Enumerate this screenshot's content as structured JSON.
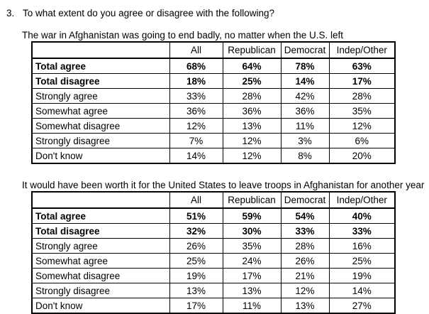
{
  "question": {
    "number": "3.",
    "text": "To what extent do you agree or disagree with the following?"
  },
  "tables": [
    {
      "title": "The war in Afghanistan was going to end badly, no matter when the U.S. left",
      "columns": [
        "",
        "All",
        "Republican",
        "Democrat",
        "Indep/Other"
      ],
      "rows": [
        {
          "label": "Total agree",
          "bold": true,
          "values": [
            "68%",
            "64%",
            "78%",
            "63%"
          ]
        },
        {
          "label": "Total disagree",
          "bold": true,
          "values": [
            "18%",
            "25%",
            "14%",
            "17%"
          ]
        },
        {
          "label": "Strongly agree",
          "bold": false,
          "values": [
            "33%",
            "28%",
            "42%",
            "28%"
          ]
        },
        {
          "label": "Somewhat agree",
          "bold": false,
          "values": [
            "36%",
            "36%",
            "36%",
            "35%"
          ]
        },
        {
          "label": "Somewhat disagree",
          "bold": false,
          "values": [
            "12%",
            "13%",
            "11%",
            "12%"
          ]
        },
        {
          "label": "Strongly disagree",
          "bold": false,
          "values": [
            "7%",
            "12%",
            "3%",
            "6%"
          ]
        },
        {
          "label": "Don't know",
          "bold": false,
          "values": [
            "14%",
            "12%",
            "8%",
            "20%"
          ]
        }
      ]
    },
    {
      "title": "It would have been worth it for the United States to leave troops in Afghanistan for another year",
      "columns": [
        "",
        "All",
        "Republican",
        "Democrat",
        "Indep/Other"
      ],
      "rows": [
        {
          "label": "Total agree",
          "bold": true,
          "values": [
            "51%",
            "59%",
            "54%",
            "40%"
          ]
        },
        {
          "label": "Total disagree",
          "bold": true,
          "values": [
            "32%",
            "30%",
            "33%",
            "33%"
          ]
        },
        {
          "label": "Strongly agree",
          "bold": false,
          "values": [
            "26%",
            "35%",
            "28%",
            "16%"
          ]
        },
        {
          "label": "Somewhat agree",
          "bold": false,
          "values": [
            "25%",
            "24%",
            "26%",
            "25%"
          ]
        },
        {
          "label": "Somewhat disagree",
          "bold": false,
          "values": [
            "19%",
            "17%",
            "21%",
            "19%"
          ]
        },
        {
          "label": "Strongly disagree",
          "bold": false,
          "values": [
            "13%",
            "13%",
            "12%",
            "14%"
          ]
        },
        {
          "label": "Don't know",
          "bold": false,
          "values": [
            "17%",
            "11%",
            "13%",
            "27%"
          ]
        }
      ]
    }
  ],
  "colors": {
    "text": "#000000",
    "background": "#ffffff",
    "border": "#000000"
  }
}
